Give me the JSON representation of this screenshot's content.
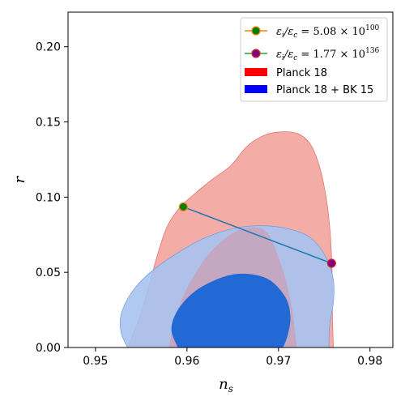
{
  "chart_data": {
    "type": "contour",
    "xlabel_main": "n",
    "xlabel_sub": "s",
    "ylabel": "r",
    "xlim": [
      0.947,
      0.9825
    ],
    "ylim": [
      0.0,
      0.223
    ],
    "xticks": [
      0.95,
      0.96,
      0.97,
      0.98
    ],
    "xtick_labels": [
      "0.95",
      "0.96",
      "0.97",
      "0.98"
    ],
    "yticks": [
      0.0,
      0.05,
      0.1,
      0.15,
      0.2
    ],
    "ytick_labels": [
      "0.00",
      "0.05",
      "0.10",
      "0.15",
      "0.20"
    ],
    "grid": false,
    "legend_position": "top-right",
    "colors": {
      "planck_outer": "#f4aca6",
      "planck_inner": "#eb7c79",
      "bk_outer": "#a7c3ef",
      "bk_inner": "#2369d5",
      "line": "#1f77b4",
      "marker1_face": "#008000",
      "marker1_edge": "#ff7f0e",
      "marker2_face": "#800080",
      "marker2_edge": "#d62728"
    },
    "legend": [
      {
        "key": "m1",
        "label_prefix": "ε",
        "label_sub1": "i",
        "label_mid": "/ε",
        "label_sub2": "c",
        "label_eq": " = 5.08 × 10",
        "label_exp": "100",
        "kind": "line-marker"
      },
      {
        "key": "m2",
        "label_prefix": "ε",
        "label_sub1": "i",
        "label_mid": "/ε",
        "label_sub2": "c",
        "label_eq": " = 1.77 × 10",
        "label_exp": "136",
        "kind": "line-marker"
      },
      {
        "key": "planck",
        "label": "Planck 18",
        "kind": "patch",
        "color": "#ff0000"
      },
      {
        "key": "bk",
        "label": "Planck 18 + BK 15",
        "kind": "patch",
        "color": "#0000ff"
      }
    ],
    "points": [
      {
        "name": "ε_i/ε_c = 5.08 × 10^100",
        "x": 0.9596,
        "y": 0.0935
      },
      {
        "name": "ε_i/ε_c = 1.77 × 10^136",
        "x": 0.9758,
        "y": 0.056
      }
    ],
    "contours": {
      "planck_outer": [
        [
          0.9535,
          0.0
        ],
        [
          0.9548,
          0.02
        ],
        [
          0.9558,
          0.04
        ],
        [
          0.9567,
          0.06
        ],
        [
          0.9578,
          0.08
        ],
        [
          0.9592,
          0.093
        ],
        [
          0.9608,
          0.102
        ],
        [
          0.9628,
          0.112
        ],
        [
          0.9648,
          0.121
        ],
        [
          0.9666,
          0.134
        ],
        [
          0.9686,
          0.1415
        ],
        [
          0.9706,
          0.1435
        ],
        [
          0.9722,
          0.142
        ],
        [
          0.9735,
          0.135
        ],
        [
          0.9745,
          0.12
        ],
        [
          0.9752,
          0.1
        ],
        [
          0.9756,
          0.08
        ],
        [
          0.9758,
          0.06
        ],
        [
          0.9759,
          0.04
        ],
        [
          0.9759,
          0.02
        ],
        [
          0.976,
          0.0
        ]
      ],
      "planck_inner": [
        [
          0.958,
          0.0
        ],
        [
          0.959,
          0.025
        ],
        [
          0.9605,
          0.045
        ],
        [
          0.9625,
          0.063
        ],
        [
          0.965,
          0.076
        ],
        [
          0.9672,
          0.08
        ],
        [
          0.9688,
          0.076
        ],
        [
          0.97,
          0.06
        ],
        [
          0.971,
          0.04
        ],
        [
          0.9716,
          0.02
        ],
        [
          0.972,
          0.0
        ]
      ],
      "bk_outer": [
        [
          0.9535,
          0.0
        ],
        [
          0.9528,
          0.01
        ],
        [
          0.9528,
          0.022
        ],
        [
          0.954,
          0.037
        ],
        [
          0.956,
          0.05
        ],
        [
          0.959,
          0.063
        ],
        [
          0.962,
          0.073
        ],
        [
          0.965,
          0.079
        ],
        [
          0.968,
          0.081
        ],
        [
          0.971,
          0.079
        ],
        [
          0.9735,
          0.073
        ],
        [
          0.9752,
          0.06
        ],
        [
          0.976,
          0.045
        ],
        [
          0.976,
          0.03
        ],
        [
          0.9756,
          0.015
        ],
        [
          0.9755,
          0.0
        ]
      ],
      "bk_inner": [
        [
          0.959,
          0.0
        ],
        [
          0.9583,
          0.012
        ],
        [
          0.959,
          0.025
        ],
        [
          0.961,
          0.038
        ],
        [
          0.964,
          0.047
        ],
        [
          0.9665,
          0.049
        ],
        [
          0.969,
          0.045
        ],
        [
          0.9708,
          0.033
        ],
        [
          0.9713,
          0.02
        ],
        [
          0.971,
          0.008
        ],
        [
          0.9705,
          0.0
        ]
      ]
    }
  }
}
